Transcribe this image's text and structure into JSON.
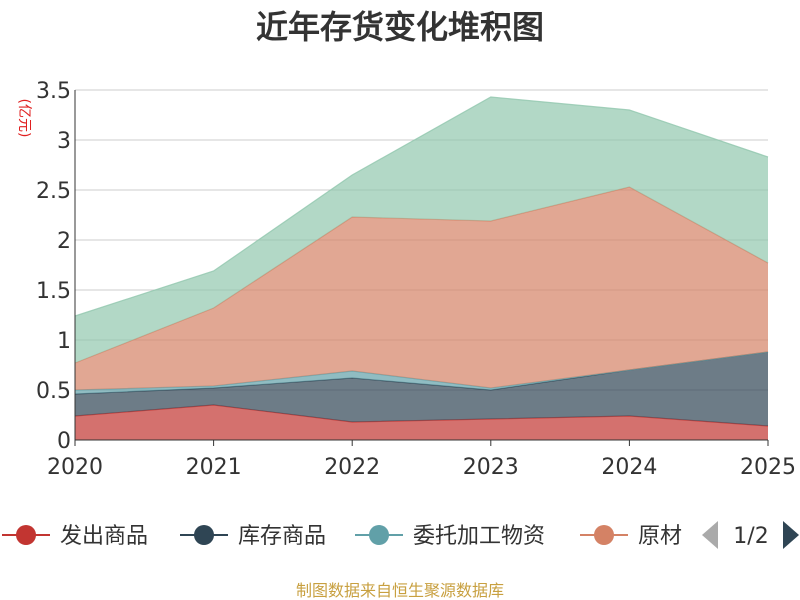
{
  "chart_data": {
    "type": "area",
    "stacked": true,
    "title": "近年存货变化堆积图",
    "unit_label": "(亿元)",
    "x": [
      "2020",
      "2021",
      "2022",
      "2023",
      "2024",
      "2025"
    ],
    "ylim": [
      0,
      3.5
    ],
    "yticks": [
      "0",
      "0.5",
      "1",
      "1.5",
      "2",
      "2.5",
      "3",
      "3.5"
    ],
    "grid": true,
    "series": [
      {
        "name": "发出商品",
        "color": "#c23531",
        "values": [
          0.24,
          0.35,
          0.18,
          0.21,
          0.24,
          0.14
        ]
      },
      {
        "name": "库存商品",
        "color": "#2f4554",
        "values": [
          0.22,
          0.17,
          0.44,
          0.29,
          0.46,
          0.74
        ]
      },
      {
        "name": "委托加工物资",
        "color": "#61a0a8",
        "values": [
          0.04,
          0.02,
          0.07,
          0.02,
          0.0,
          0.0
        ]
      },
      {
        "name": "原材料",
        "color": "#d48265",
        "values": [
          0.27,
          0.78,
          1.54,
          1.67,
          1.83,
          0.89
        ]
      },
      {
        "name": "",
        "color": "#91c7ae",
        "values": [
          0.47,
          0.37,
          0.42,
          1.24,
          0.77,
          1.06
        ]
      }
    ],
    "legend": {
      "placement": "bottom",
      "page": "1/2",
      "visible_labels": [
        "发出商品",
        "库存商品",
        "委托加工物资",
        "原材"
      ]
    },
    "source": "制图数据来自恒生聚源数据库"
  }
}
